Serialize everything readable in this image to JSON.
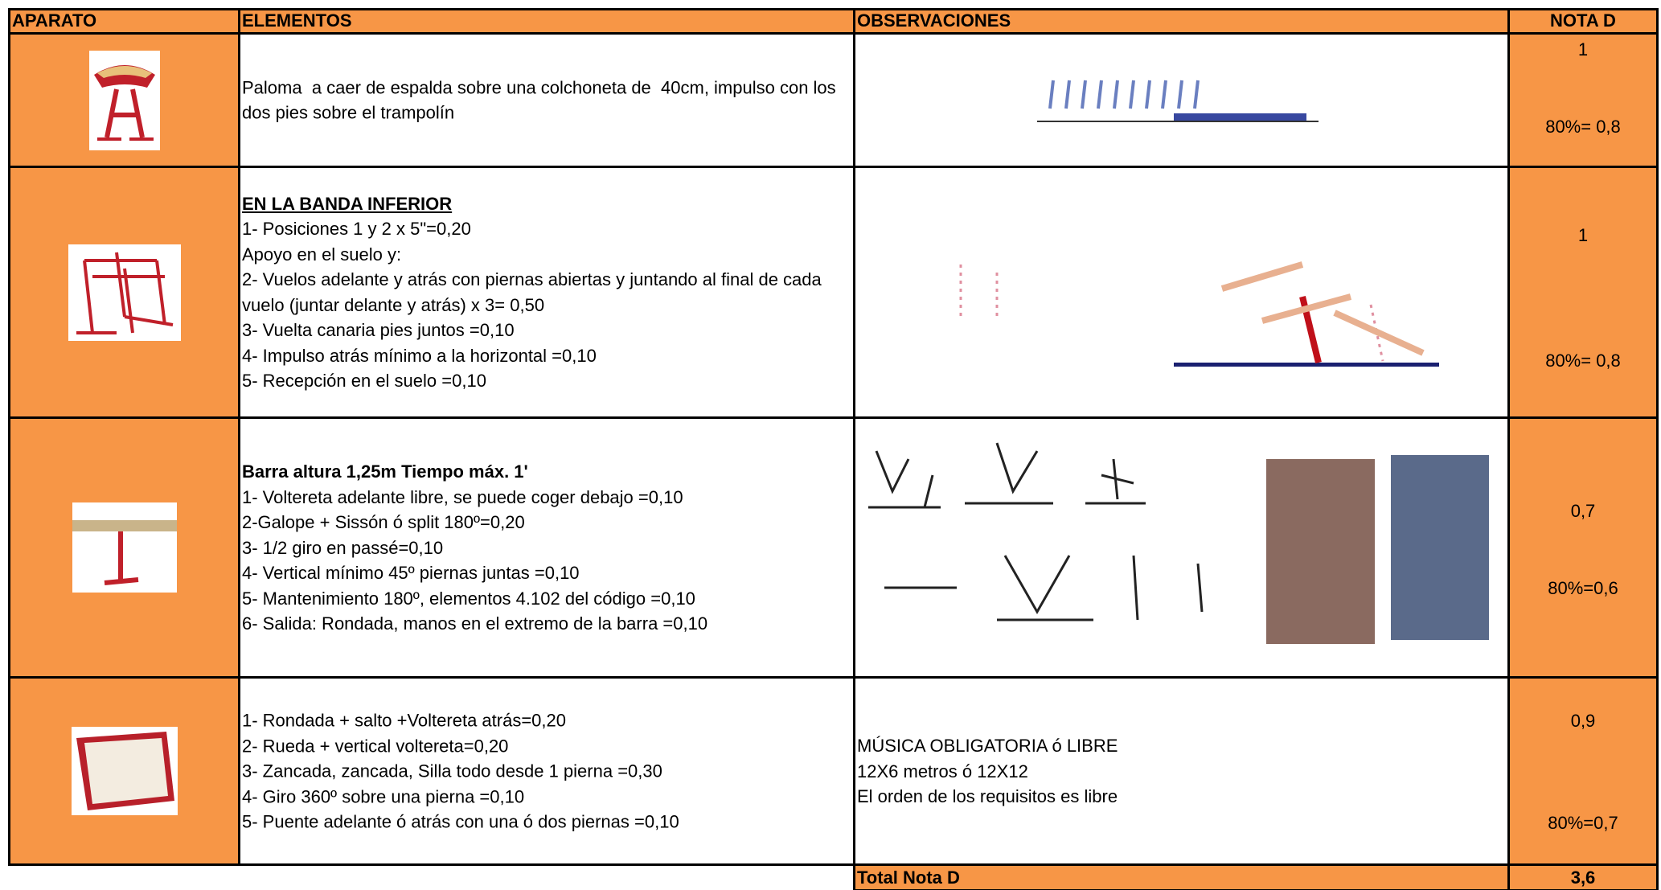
{
  "header": {
    "aparato": "APARATO",
    "elementos": "ELEMENTOS",
    "observaciones": "OBSERVACIONES",
    "nota_d": "NOTA D"
  },
  "rows": [
    {
      "elementos": [
        "Paloma  a caer de espalda sobre una colchoneta de  40cm, impulso con los dos pies sobre el trampolín"
      ],
      "nota": "1",
      "nota_pct": "80%= 0,8"
    },
    {
      "heading": "EN LA BANDA INFERIOR",
      "elementos": [
        "1- Posiciones 1 y 2 x 5\"=0,20",
        "Apoyo en el suelo y:",
        "2- Vuelos adelante y atrás con piernas abiertas y juntando al final de cada vuelo (juntar delante y atrás) x 3= 0,50",
        "3- Vuelta canaria pies juntos =0,10",
        "4- Impulso atrás mínimo a la horizontal =0,10",
        "5- Recepción en el suelo =0,10"
      ],
      "nota": "1",
      "nota_pct": "80%= 0,8"
    },
    {
      "heading": "Barra altura 1,25m Tiempo máx. 1'",
      "elementos": [
        "1- Voltereta adelante libre, se puede coger debajo =0,10",
        "2-Galope + Sissón ó split 180º=0,20",
        "3- 1/2 giro en passé=0,10",
        "4- Vertical mínimo 45º piernas juntas =0,10",
        "5- Mantenimiento 180º, elementos 4.102 del código =0,10",
        "6- Salida: Rondada, manos en el extremo de la barra =0,10"
      ],
      "nota": "0,7",
      "nota_pct": "80%=0,6"
    },
    {
      "elementos": [
        "1- Rondada + salto +Voltereta atrás=0,20",
        "2- Rueda + vertical voltereta=0,20",
        "3- Zancada, zancada, Silla todo desde 1 pierna =0,30",
        "4- Giro 360º sobre una pierna =0,10",
        "5- Puente adelante ó atrás con una ó dos piernas =0,10"
      ],
      "observaciones": [
        "MÚSICA OBLIGATORIA ó LIBRE",
        "12X6 metros ó 12X12",
        "El orden de los requisitos es libre"
      ],
      "nota": "0,9",
      "nota_pct": "80%=0,7"
    }
  ],
  "total": {
    "label": "Total Nota D",
    "value": "3,6"
  }
}
